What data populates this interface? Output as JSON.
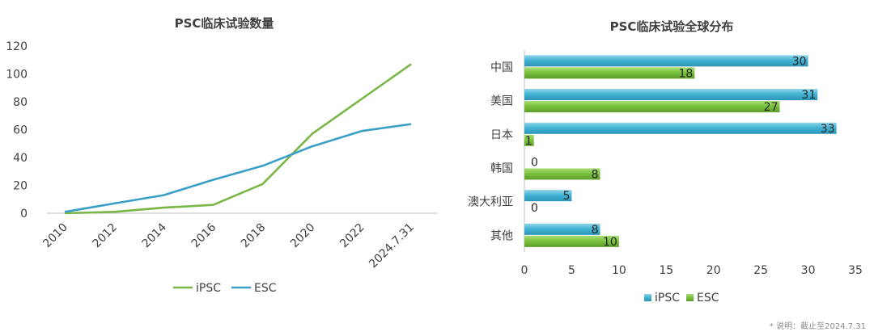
{
  "footnote": "* 说明：截止至2024.7.31",
  "chart_data": [
    {
      "type": "line",
      "title": "PSC临床试验数量",
      "categories": [
        "2010",
        "2012",
        "2014",
        "2016",
        "2018",
        "2020",
        "2022",
        "2024.7.31"
      ],
      "ylim": [
        0,
        120
      ],
      "yticks": [
        0,
        20,
        40,
        60,
        80,
        100,
        120
      ],
      "grid": false,
      "legend": "bottom",
      "series": [
        {
          "name": "iPSC",
          "color": "#7ab648",
          "values": [
            0,
            1,
            4,
            6,
            21,
            57,
            82,
            107
          ]
        },
        {
          "name": "ESC",
          "color": "#3a9fc6",
          "values": [
            1,
            7,
            13,
            24,
            34,
            48,
            59,
            64
          ]
        }
      ]
    },
    {
      "type": "bar",
      "orientation": "horizontal",
      "title": "PSC临床试验全球分布",
      "categories": [
        "中国",
        "美国",
        "日本",
        "韩国",
        "澳大利亚",
        "其他"
      ],
      "xlim": [
        0,
        35
      ],
      "xticks": [
        0,
        5,
        10,
        15,
        20,
        25,
        30,
        35
      ],
      "grid": false,
      "legend": "bottom",
      "series": [
        {
          "name": "iPSC",
          "color": "#3fb1d1",
          "values": [
            30,
            31,
            33,
            0,
            5,
            8
          ]
        },
        {
          "name": "ESC",
          "color": "#79be3c",
          "values": [
            18,
            27,
            1,
            8,
            0,
            10
          ]
        }
      ]
    }
  ]
}
